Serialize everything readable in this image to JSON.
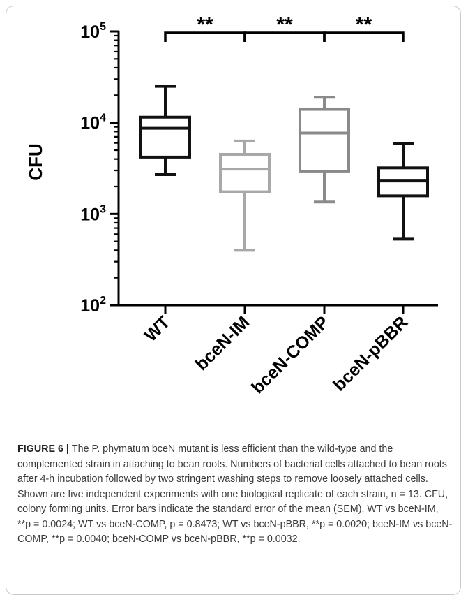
{
  "chart_data": {
    "type": "box",
    "ylabel": "CFU",
    "yscale": "log",
    "ylim": [
      100,
      100000
    ],
    "yticks": [
      {
        "value": 100,
        "base": "10",
        "exp": "2"
      },
      {
        "value": 1000,
        "base": "10",
        "exp": "3"
      },
      {
        "value": 10000,
        "base": "10",
        "exp": "4"
      },
      {
        "value": 100000,
        "base": "10",
        "exp": "5"
      }
    ],
    "categories": [
      "WT",
      "bceN-IM",
      "bceN-COMP",
      "bceN-pBBR"
    ],
    "colors": [
      "#111111",
      "#a8a8a8",
      "#8a8a8a",
      "#111111"
    ],
    "boxes": [
      {
        "min": 2700,
        "q1": 4200,
        "median": 8700,
        "q3": 11500,
        "max": 25000
      },
      {
        "min": 400,
        "q1": 1750,
        "median": 3100,
        "q3": 4500,
        "max": 6300
      },
      {
        "min": 1350,
        "q1": 2900,
        "median": 7700,
        "q3": 14000,
        "max": 19000
      },
      {
        "min": 530,
        "q1": 1580,
        "median": 2300,
        "q3": 3200,
        "max": 5900
      }
    ],
    "significance": [
      {
        "from": 0,
        "to": 1,
        "label": "**"
      },
      {
        "from": 1,
        "to": 2,
        "label": "**"
      },
      {
        "from": 2,
        "to": 3,
        "label": "**"
      }
    ]
  },
  "caption": {
    "label": "FIGURE 6",
    "separator": " | ",
    "text": "The P. phymatum bceN mutant is less efficient than the wild-type and the complemented strain in attaching to bean roots. Numbers of bacterial cells attached to bean roots after 4-h incubation followed by two stringent washing steps to remove loosely attached cells. Shown are five independent experiments with one biological replicate of each strain, n = 13. CFU, colony forming units. Error bars indicate the standard error of the mean (SEM). WT vs bceN-IM, **p = 0.0024; WT vs bceN-COMP, p = 0.8473; WT vs bceN-pBBR, **p = 0.0020; bceN-IM vs bceN-COMP, **p = 0.0040; bceN-COMP vs bceN-pBBR, **p = 0.0032."
  }
}
